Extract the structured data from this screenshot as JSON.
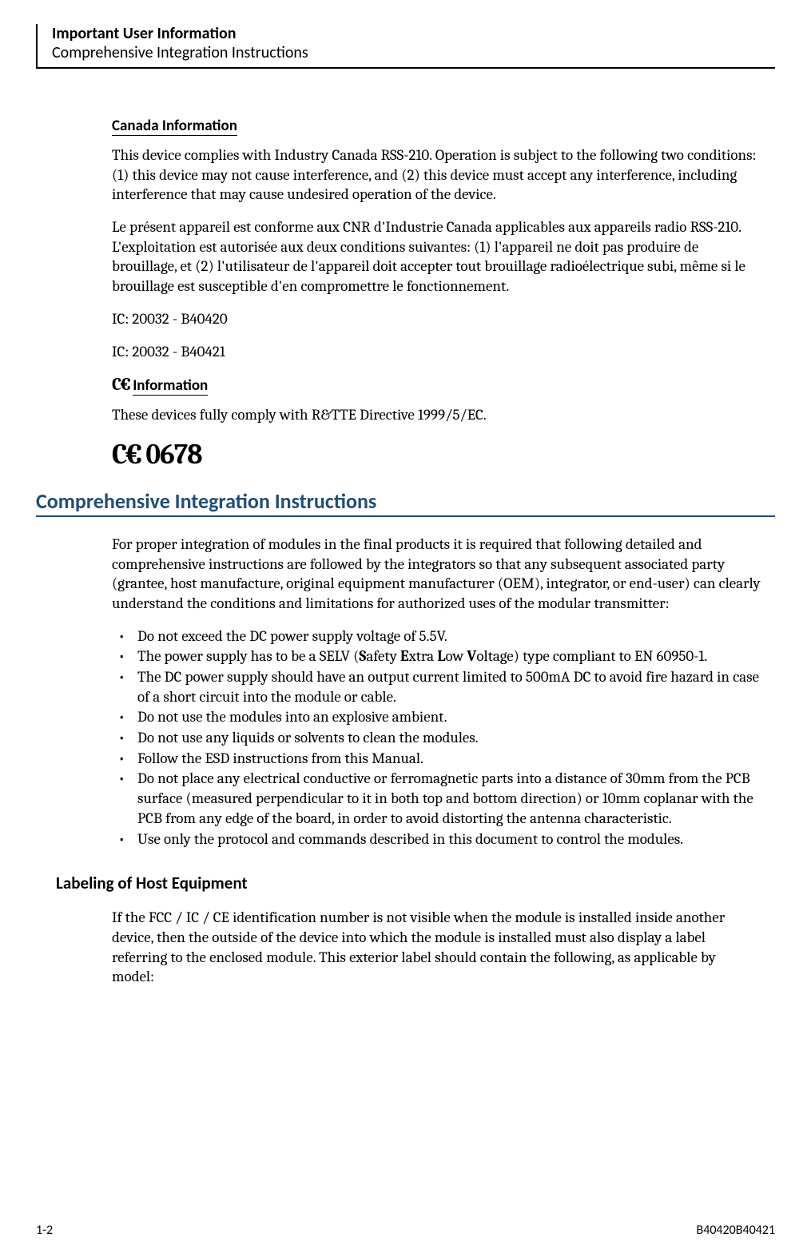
{
  "header": {
    "title": "Important User Information",
    "subtitle": "Comprehensive Integration Instructions"
  },
  "canada": {
    "heading": "Canada Information",
    "para1": "This device complies with Industry Canada RSS-210. Operation is subject to the following two conditions: (1) this device may not cause interference, and (2) this device must accept any interference, including interference that may cause undesired operation of the device.",
    "para2": "Le présent appareil est conforme aux CNR d'Industrie Canada applicables aux appareils radio RSS-210. L'exploitation est autorisée aux deux conditions suivantes: (1) l'appareil ne doit pas produire de brouillage, et (2) l'utilisateur de l'appareil doit accepter tout brouillage radioélectrique subi, même si le brouillage est susceptible d'en compromettre le fonctionnement.",
    "ic1": "IC: 20032 - B40420",
    "ic2": "IC: 20032 - B40421"
  },
  "ce": {
    "heading": "Information",
    "para": "These devices fully comply with R&TTE Directive 1999/5/EC.",
    "mark": "0678"
  },
  "integration": {
    "title": "Comprehensive Integration Instructions",
    "intro": "For proper integration of modules in the final products it is required that following detailed and comprehensive instructions are followed by the integrators so that any subsequent associated party (grantee, host manufacture, original equipment manufacturer (OEM), integrator, or end-user) can clearly understand the conditions and limitations for authorized uses of the modular transmitter:",
    "bullets": [
      "Do not exceed the DC power supply voltage of 5.5V.",
      "The power supply has to be a SELV (Safety Extra Low Voltage) type compliant to EN 60950-1.",
      "The DC power supply should have an output current limited to 500mA DC to avoid fire hazard in case of a short circuit into the module or cable.",
      "Do not use the modules into an explosive ambient.",
      "Do not use any liquids or solvents to clean the modules.",
      "Follow the ESD instructions from this Manual.",
      "Do not place any electrical conductive or ferromagnetic parts into a distance of 30mm from the PCB surface (measured perpendicular to it in both top and bottom direction) or 10mm coplanar with the PCB from any edge of the board, in order to avoid distorting the antenna characteristic.",
      "Use only the protocol and commands described in this document to control the modules."
    ]
  },
  "labeling": {
    "heading": "Labeling of Host Equipment",
    "para": "If the FCC / IC / CE identification number is not visible when the module is installed inside another device, then the outside of the device into which the module is installed must also display a label referring to the enclosed module. This exterior label should contain the following, as applicable by model:"
  },
  "footer": {
    "left": "1-2",
    "right": "B40420B40421"
  },
  "colors": {
    "section_title": "#1f4e79",
    "text": "#000000",
    "background": "#ffffff"
  },
  "typography": {
    "body_font": "Cambria",
    "heading_font": "Calibri",
    "body_size_pt": 11,
    "section_title_size_pt": 16
  }
}
